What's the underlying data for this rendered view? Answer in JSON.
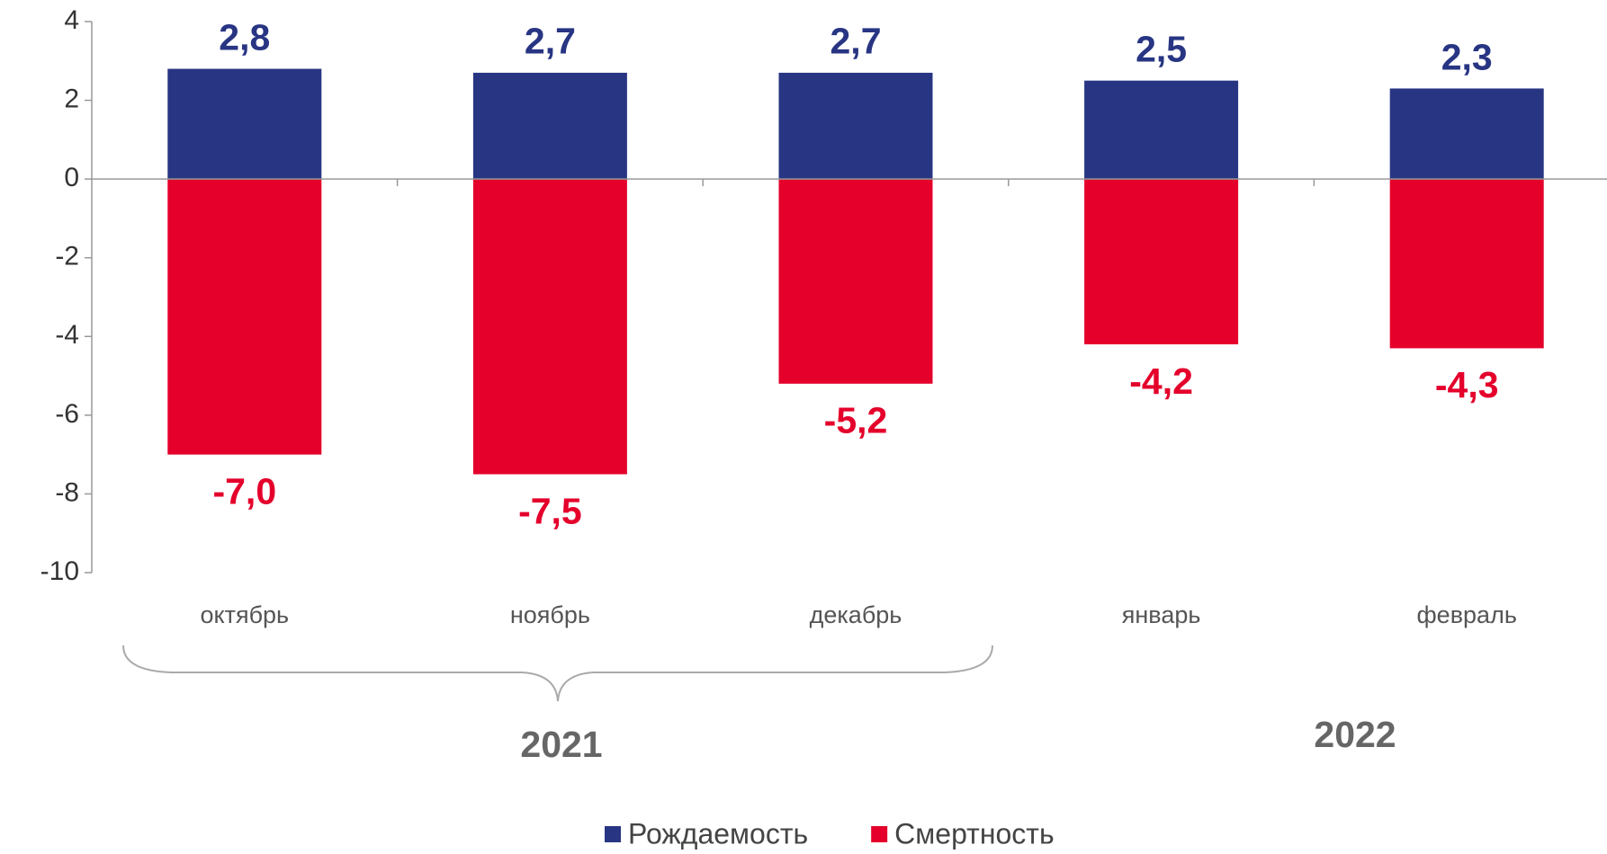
{
  "chart_data": {
    "type": "bar",
    "categories": [
      "октябрь",
      "ноябрь",
      "декабрь",
      "январь",
      "февраль"
    ],
    "series": [
      {
        "name": "Рождаемость",
        "color": "#283583",
        "values": [
          2.8,
          2.7,
          2.7,
          2.5,
          2.3
        ],
        "value_labels": [
          "2,8",
          "2,7",
          "2,7",
          "2,5",
          "2,3"
        ]
      },
      {
        "name": "Смертность",
        "color": "#e4002b",
        "values": [
          -7.0,
          -7.5,
          -5.2,
          -4.2,
          -4.3
        ],
        "value_labels": [
          "-7,0",
          "-7,5",
          "-5,2",
          "-4,2",
          "-4,3"
        ]
      }
    ],
    "ylim": [
      -10,
      4
    ],
    "yticks": [
      -10,
      -8,
      -6,
      -4,
      -2,
      0,
      2,
      4
    ],
    "annotations": [
      "2021",
      "2022"
    ],
    "legend": "bottom"
  }
}
